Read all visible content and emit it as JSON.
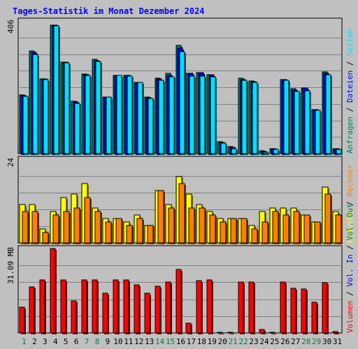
{
  "title": "Tages-Statistik im Monat Dezember 2024",
  "colors": {
    "background": "#c0c0c0",
    "title": "#0000ff",
    "grid": "#808080",
    "anfragen": "#00805c",
    "dateien": "#0000ff",
    "seiten": "#00e0ff",
    "besuche": "#ffff00",
    "rechner": "#ff8000",
    "volumen": "#ff0000",
    "weekday_label": "#000000",
    "weekend_label": "#008040"
  },
  "chart_data": [
    {
      "type": "bar",
      "panel": "top",
      "y_max_label": "406",
      "ylim": [
        0,
        406
      ],
      "categories": [
        "1",
        "2",
        "3",
        "4",
        "5",
        "6",
        "7",
        "8",
        "9",
        "10",
        "11",
        "12",
        "13",
        "14",
        "15",
        "16",
        "17",
        "18",
        "19",
        "20",
        "21",
        "22",
        "23",
        "24",
        "25",
        "26",
        "27",
        "28",
        "29",
        "30",
        "31"
      ],
      "series": [
        {
          "name": "Anfragen",
          "values": [
            180,
            315,
            228,
            394,
            279,
            160,
            244,
            288,
            174,
            239,
            239,
            219,
            174,
            230,
            245,
            332,
            246,
            248,
            242,
            36,
            22,
            231,
            223,
            8,
            15,
            227,
            198,
            201,
            135,
            249,
            16
          ]
        },
        {
          "name": "Dateien",
          "values": [
            178,
            309,
            228,
            394,
            279,
            158,
            241,
            284,
            174,
            239,
            239,
            219,
            172,
            228,
            240,
            322,
            245,
            247,
            242,
            35,
            20,
            227,
            220,
            7,
            14,
            226,
            195,
            200,
            135,
            246,
            15
          ]
        },
        {
          "name": "Seiten",
          "values": [
            176,
            304,
            227,
            392,
            277,
            153,
            239,
            282,
            174,
            239,
            238,
            217,
            169,
            225,
            234,
            311,
            238,
            238,
            236,
            32,
            15,
            224,
            218,
            5,
            12,
            224,
            190,
            193,
            133,
            241,
            12
          ]
        }
      ],
      "right_labels": [
        "Anfragen",
        "Dateien",
        "Seiten"
      ]
    },
    {
      "type": "bar",
      "panel": "middle",
      "y_max_label": "24",
      "ylim": [
        0,
        24
      ],
      "categories": [
        "1",
        "2",
        "3",
        "4",
        "5",
        "6",
        "7",
        "8",
        "9",
        "10",
        "11",
        "12",
        "13",
        "14",
        "15",
        "16",
        "17",
        "18",
        "19",
        "20",
        "21",
        "22",
        "23",
        "24",
        "25",
        "26",
        "27",
        "28",
        "29",
        "30",
        "31"
      ],
      "series": [
        {
          "name": "Besuche",
          "values": [
            11,
            11,
            4,
            9,
            13,
            14,
            17,
            10,
            7,
            7,
            6,
            8,
            5,
            15,
            11,
            19,
            14,
            11,
            9,
            7,
            7,
            7,
            5,
            9,
            10,
            10,
            10,
            8,
            6,
            16,
            9
          ]
        },
        {
          "name": "Rechner",
          "values": [
            9,
            9,
            3,
            8,
            9,
            10,
            13,
            9,
            6,
            7,
            5,
            7,
            5,
            15,
            10,
            17,
            10,
            10,
            8,
            6,
            7,
            7,
            4,
            6,
            9,
            8,
            9,
            8,
            6,
            14,
            8
          ]
        }
      ],
      "right_labels": [
        "Besuche",
        "Rechner"
      ]
    },
    {
      "type": "bar",
      "panel": "bottom",
      "y_max_label": "31.09 MB",
      "ylim": [
        0,
        31.09
      ],
      "categories": [
        "1",
        "2",
        "3",
        "4",
        "5",
        "6",
        "7",
        "8",
        "9",
        "10",
        "11",
        "12",
        "13",
        "14",
        "15",
        "16",
        "17",
        "18",
        "19",
        "20",
        "21",
        "22",
        "23",
        "24",
        "25",
        "26",
        "27",
        "28",
        "29",
        "30",
        "31"
      ],
      "series": [
        {
          "name": "Volumen",
          "values": [
            9.6,
            16.9,
            19.6,
            31.1,
            19.6,
            11.9,
            19.6,
            19.6,
            14.6,
            19.6,
            19.6,
            17.7,
            14.6,
            17.3,
            18.8,
            23.5,
            3.5,
            19.2,
            19.6,
            0.3,
            0.3,
            18.8,
            18.8,
            1.2,
            0.3,
            18.8,
            16.5,
            16.1,
            11.2,
            18.5,
            0.4
          ]
        }
      ],
      "right_labels": [
        "Volumen",
        "Vol. In",
        "Vol. Out"
      ]
    }
  ],
  "weekend_days": [
    1,
    7,
    8,
    14,
    15,
    21,
    22,
    28,
    29
  ]
}
